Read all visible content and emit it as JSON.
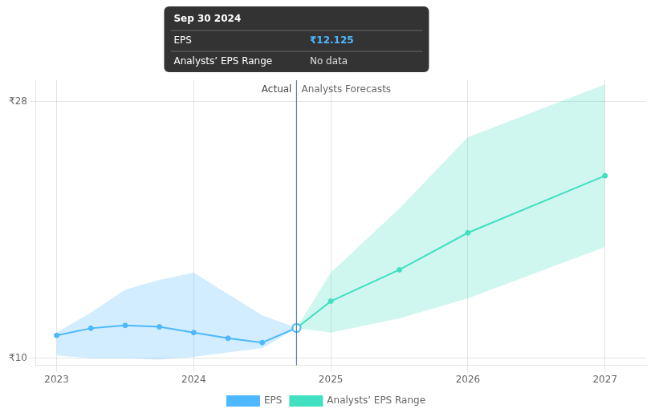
{
  "chart_data": {
    "type": "line",
    "series": [
      {
        "name": "EPS",
        "color": "#4db8ff",
        "x": [
          2023.0,
          2023.25,
          2023.5,
          2023.75,
          2024.0,
          2024.25,
          2024.5,
          2024.75
        ],
        "values": [
          11.6,
          12.1,
          12.3,
          12.2,
          11.8,
          11.4,
          11.1,
          12.125
        ],
        "upper": [
          11.8,
          13.2,
          14.8,
          15.5,
          16.0,
          14.5,
          13.0,
          12.125
        ],
        "lower": [
          10.2,
          10.0,
          10.0,
          9.9,
          10.1,
          10.4,
          10.7,
          12.125
        ]
      },
      {
        "name": "Analysts’ EPS Range",
        "color": "#40e0c0",
        "x": [
          2024.75,
          2025.0,
          2025.5,
          2026.0,
          2027.0
        ],
        "values": [
          12.125,
          14.0,
          16.2,
          18.8,
          22.8
        ],
        "upper": [
          12.125,
          16.0,
          20.5,
          25.5,
          29.2
        ],
        "lower": [
          12.125,
          11.8,
          12.8,
          14.2,
          17.8
        ]
      }
    ],
    "xlim": [
      2022.85,
      2027.3
    ],
    "xticks": [
      2023,
      2024,
      2025,
      2026,
      2027
    ],
    "ylim": [
      9.5,
      29.5
    ],
    "yticks": [
      {
        "value": 10,
        "label": "₹10"
      },
      {
        "value": 28,
        "label": "₹28"
      }
    ],
    "grid": true,
    "legend": "bottom",
    "divider": {
      "x": 2024.75,
      "before": "Actual",
      "after": "Analysts Forecasts"
    },
    "tooltip": {
      "x": 2024.75,
      "title": "Sep 30 2024",
      "rows": [
        {
          "label": "EPS",
          "value": "₹12.125"
        },
        {
          "label": "Analysts’ EPS Range",
          "value": "No data"
        }
      ]
    }
  }
}
